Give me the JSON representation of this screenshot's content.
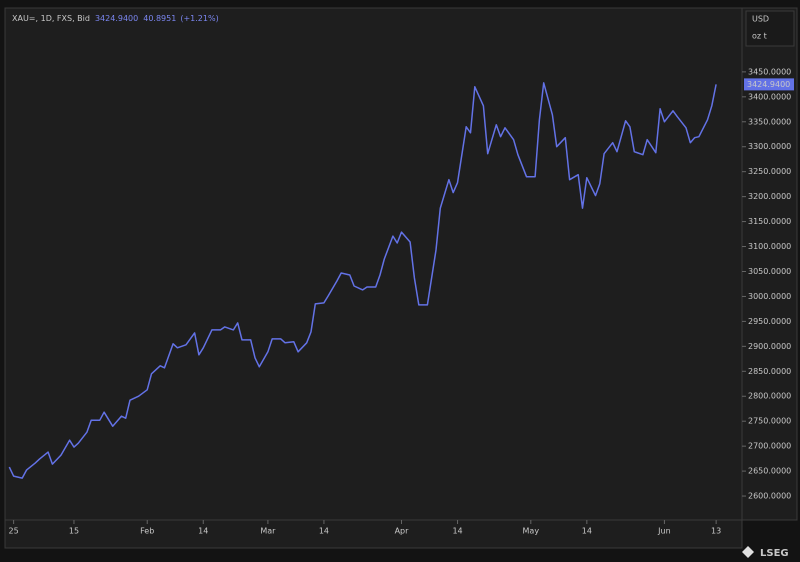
{
  "chart_data": {
    "type": "line",
    "title": "XAU=, 1D, FXS, Bid",
    "last_price": "3424.9400",
    "change": "40.8951",
    "change_pct": "(+1.21%)",
    "currency": "USD",
    "unit": "oz t",
    "brand": "LSEG",
    "color": "#6372e6",
    "x": [
      -1,
      0,
      2,
      3,
      5,
      6,
      8,
      9,
      11,
      13,
      14,
      15,
      17,
      18,
      20,
      21,
      23,
      25,
      26,
      27,
      29,
      31,
      32,
      34,
      35,
      37,
      38,
      40,
      42,
      43,
      44,
      46,
      48,
      49,
      51,
      52,
      53,
      55,
      56,
      57,
      59,
      60,
      62,
      63,
      65,
      66,
      68,
      69,
      70,
      72,
      73,
      75,
      76,
      78,
      79,
      81,
      82,
      84,
      85,
      86,
      88,
      89,
      90,
      92,
      93,
      94,
      96,
      98,
      99,
      101,
      102,
      103,
      105,
      106,
      107,
      109,
      110,
      112,
      113,
      114,
      116,
      117,
      119,
      121,
      122,
      123,
      125,
      126,
      128,
      129,
      131,
      132,
      133,
      135,
      136,
      137,
      139,
      140,
      142,
      143,
      144,
      146,
      147,
      149,
      150,
      151,
      153,
      154,
      156,
      157,
      158,
      159,
      161,
      162,
      163
    ],
    "values": [
      2658,
      2640,
      2636,
      2652,
      2666,
      2674,
      2688,
      2664,
      2682,
      2712,
      2698,
      2706,
      2728,
      2752,
      2752,
      2768,
      2740,
      2760,
      2756,
      2792,
      2800,
      2813,
      2845,
      2861,
      2857,
      2905,
      2897,
      2903,
      2927,
      2883,
      2897,
      2933,
      2933,
      2939,
      2933,
      2947,
      2913,
      2913,
      2877,
      2859,
      2889,
      2915,
      2915,
      2907,
      2909,
      2889,
      2907,
      2929,
      2985,
      2987,
      3001,
      3031,
      3047,
      3043,
      3021,
      3013,
      3019,
      3019,
      3043,
      3075,
      3121,
      3107,
      3129,
      3109,
      3037,
      2983,
      2983,
      3093,
      3177,
      3234,
      3208,
      3228,
      3340,
      3328,
      3420,
      3382,
      3286,
      3344,
      3320,
      3338,
      3314,
      3284,
      3240,
      3240,
      3354,
      3428,
      3364,
      3300,
      3318,
      3234,
      3244,
      3177,
      3238,
      3202,
      3226,
      3286,
      3308,
      3290,
      3352,
      3340,
      3290,
      3284,
      3314,
      3288,
      3376,
      3350,
      3372,
      3360,
      3338,
      3308,
      3318,
      3320,
      3354,
      3382,
      3424.94
    ],
    "xlim": [
      -2,
      169
    ],
    "xticks": [
      {
        "value": 0,
        "label": "25"
      },
      {
        "value": 14,
        "label": "15"
      },
      {
        "value": 31,
        "label": "Feb"
      },
      {
        "value": 44,
        "label": "14"
      },
      {
        "value": 59,
        "label": "Mar"
      },
      {
        "value": 72,
        "label": "14"
      },
      {
        "value": 90,
        "label": "Apr"
      },
      {
        "value": 103,
        "label": "14"
      },
      {
        "value": 120,
        "label": "May"
      },
      {
        "value": 133,
        "label": "14"
      },
      {
        "value": 151,
        "label": "Jun"
      },
      {
        "value": 163,
        "label": "13"
      }
    ],
    "ylim": [
      2552,
      3578
    ],
    "yticks": [
      {
        "value": 2600,
        "label": "2600.0000"
      },
      {
        "value": 2650,
        "label": "2650.0000"
      },
      {
        "value": 2700,
        "label": "2700.0000"
      },
      {
        "value": 2750,
        "label": "2750.0000"
      },
      {
        "value": 2800,
        "label": "2800.0000"
      },
      {
        "value": 2850,
        "label": "2850.0000"
      },
      {
        "value": 2900,
        "label": "2900.0000"
      },
      {
        "value": 2950,
        "label": "2950.0000"
      },
      {
        "value": 3000,
        "label": "3000.0000"
      },
      {
        "value": 3050,
        "label": "3050.0000"
      },
      {
        "value": 3100,
        "label": "3100.0000"
      },
      {
        "value": 3150,
        "label": "3150.0000"
      },
      {
        "value": 3200,
        "label": "3200.0000"
      },
      {
        "value": 3250,
        "label": "3250.0000"
      },
      {
        "value": 3300,
        "label": "3300.0000"
      },
      {
        "value": 3350,
        "label": "3350.0000"
      },
      {
        "value": 3400,
        "label": "3400.0000"
      },
      {
        "value": 3450,
        "label": "3450.0000"
      }
    ],
    "grid": false
  }
}
